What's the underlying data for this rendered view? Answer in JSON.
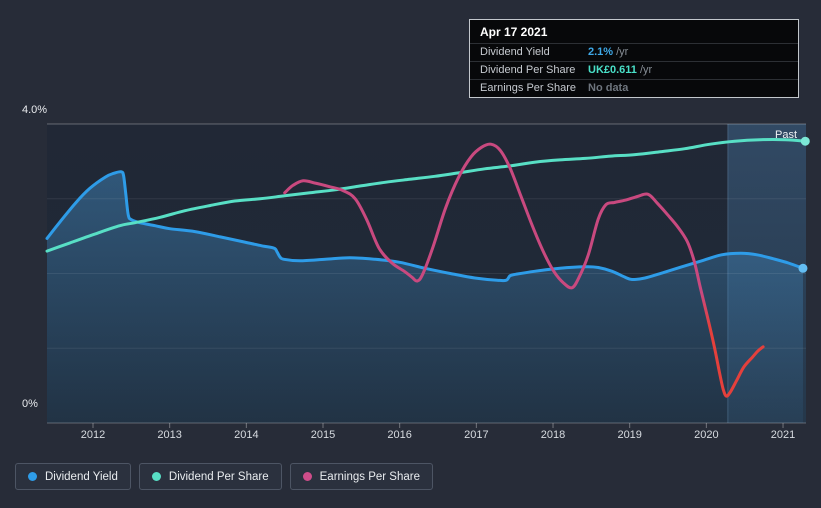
{
  "colors": {
    "page_background": "#272c38",
    "yield_blue": "#2e9ce8",
    "dps_teal": "#58dfc5",
    "eps_pink": "#c9497f",
    "eps_negative_red": "#e4403c",
    "tooltip_yield_value": "#3fa9e8",
    "tooltip_dps_value": "#49e0c8",
    "tooltip_nodata": "#6e757e"
  },
  "tooltip": {
    "date": "Apr 17 2021",
    "rows": [
      {
        "label": "Dividend Yield",
        "value": "2.1%",
        "suffix": "/yr",
        "value_color": "#3fa9e8"
      },
      {
        "label": "Dividend Per Share",
        "value": "UK£0.611",
        "suffix": "/yr",
        "value_color": "#49e0c8"
      },
      {
        "label": "Earnings Per Share",
        "value": "No data",
        "suffix": "",
        "value_color": "#6e757e"
      }
    ]
  },
  "axis": {
    "y_top_label": "4.0%",
    "y_bottom_label": "0%",
    "past_label": "Past"
  },
  "legend": {
    "items": [
      {
        "label": "Dividend Yield",
        "color": "#2e9ce8"
      },
      {
        "label": "Dividend Per Share",
        "color": "#58dfc5"
      },
      {
        "label": "Earnings Per Share",
        "color": "#cf4d8a"
      }
    ]
  },
  "chart_data": {
    "type": "line",
    "title": "Dividend history (yield, dividend per share, earnings per share)",
    "x_axis": {
      "tick_years": [
        2012,
        2013,
        2014,
        2015,
        2016,
        2017,
        2018,
        2019,
        2020,
        2021
      ],
      "range": [
        2011.4,
        2021.3
      ]
    },
    "y_axis": {
      "min": 0,
      "max": 4,
      "unit": "%",
      "top_label": "4.0%",
      "bottom_label": "0%"
    },
    "grid_pct": [
      1,
      2,
      3
    ],
    "past_divider_year": 2020.28,
    "legend_position": "bottom-left",
    "series": [
      {
        "name": "Dividend Yield",
        "color": "#2e9ce8",
        "dot_color": "#63bdf2",
        "area_fill": true,
        "current_value": "2.1% /yr",
        "end_dot": [
          2021.26,
          2.07
        ],
        "points": [
          [
            2011.4,
            2.47
          ],
          [
            2011.57,
            2.69
          ],
          [
            2011.77,
            2.94
          ],
          [
            2011.96,
            3.14
          ],
          [
            2012.16,
            3.29
          ],
          [
            2012.27,
            3.34
          ],
          [
            2012.37,
            3.36
          ],
          [
            2012.4,
            3.3
          ],
          [
            2012.43,
            3.04
          ],
          [
            2012.46,
            2.78
          ],
          [
            2012.5,
            2.72
          ],
          [
            2012.61,
            2.68
          ],
          [
            2012.81,
            2.64
          ],
          [
            2013.0,
            2.6
          ],
          [
            2013.33,
            2.56
          ],
          [
            2013.66,
            2.49
          ],
          [
            2013.98,
            2.42
          ],
          [
            2014.2,
            2.37
          ],
          [
            2014.36,
            2.34
          ],
          [
            2014.4,
            2.29
          ],
          [
            2014.44,
            2.22
          ],
          [
            2014.49,
            2.19
          ],
          [
            2014.7,
            2.17
          ],
          [
            2015.03,
            2.19
          ],
          [
            2015.35,
            2.21
          ],
          [
            2015.68,
            2.19
          ],
          [
            2016.0,
            2.15
          ],
          [
            2016.33,
            2.07
          ],
          [
            2016.66,
            2.0
          ],
          [
            2016.98,
            1.94
          ],
          [
            2017.27,
            1.91
          ],
          [
            2017.39,
            1.91
          ],
          [
            2017.44,
            1.97
          ],
          [
            2017.52,
            1.99
          ],
          [
            2017.76,
            2.03
          ],
          [
            2018.09,
            2.07
          ],
          [
            2018.42,
            2.09
          ],
          [
            2018.59,
            2.08
          ],
          [
            2018.77,
            2.03
          ],
          [
            2018.94,
            1.95
          ],
          [
            2019.03,
            1.92
          ],
          [
            2019.2,
            1.94
          ],
          [
            2019.43,
            2.01
          ],
          [
            2019.68,
            2.09
          ],
          [
            2019.94,
            2.17
          ],
          [
            2020.2,
            2.25
          ],
          [
            2020.45,
            2.27
          ],
          [
            2020.66,
            2.25
          ],
          [
            2020.86,
            2.2
          ],
          [
            2021.07,
            2.14
          ],
          [
            2021.26,
            2.07
          ]
        ]
      },
      {
        "name": "Dividend Per Share",
        "color": "#58dfc5",
        "dot_color": "#7ce8d6",
        "area_fill": false,
        "current_value": "UK£0.611 /yr",
        "end_dot": [
          2021.29,
          3.77
        ],
        "points": [
          [
            2011.4,
            2.3
          ],
          [
            2011.7,
            2.41
          ],
          [
            2012.03,
            2.53
          ],
          [
            2012.35,
            2.64
          ],
          [
            2012.55,
            2.68
          ],
          [
            2012.87,
            2.75
          ],
          [
            2013.2,
            2.84
          ],
          [
            2013.53,
            2.91
          ],
          [
            2013.85,
            2.97
          ],
          [
            2014.18,
            3.0
          ],
          [
            2014.5,
            3.04
          ],
          [
            2014.83,
            3.08
          ],
          [
            2015.16,
            3.12
          ],
          [
            2015.48,
            3.17
          ],
          [
            2015.81,
            3.22
          ],
          [
            2016.13,
            3.26
          ],
          [
            2016.46,
            3.3
          ],
          [
            2016.79,
            3.35
          ],
          [
            2017.11,
            3.4
          ],
          [
            2017.44,
            3.44
          ],
          [
            2017.77,
            3.49
          ],
          [
            2018.09,
            3.52
          ],
          [
            2018.42,
            3.54
          ],
          [
            2018.75,
            3.57
          ],
          [
            2019.07,
            3.59
          ],
          [
            2019.4,
            3.63
          ],
          [
            2019.72,
            3.67
          ],
          [
            2020.05,
            3.73
          ],
          [
            2020.37,
            3.77
          ],
          [
            2020.7,
            3.79
          ],
          [
            2021.03,
            3.79
          ],
          [
            2021.29,
            3.77
          ]
        ]
      },
      {
        "name": "Earnings Per Share",
        "color": "#c9497f",
        "negative_color": "#e4403c",
        "area_fill": false,
        "current_value": "No data",
        "points": [
          [
            2014.5,
            3.08
          ],
          [
            2014.61,
            3.18
          ],
          [
            2014.74,
            3.24
          ],
          [
            2014.9,
            3.21
          ],
          [
            2015.09,
            3.16
          ],
          [
            2015.26,
            3.11
          ],
          [
            2015.42,
            3.0
          ],
          [
            2015.57,
            2.72
          ],
          [
            2015.73,
            2.34
          ],
          [
            2015.9,
            2.14
          ],
          [
            2016.06,
            2.03
          ],
          [
            2016.16,
            1.95
          ],
          [
            2016.23,
            1.9
          ],
          [
            2016.3,
            1.99
          ],
          [
            2016.43,
            2.34
          ],
          [
            2016.6,
            2.88
          ],
          [
            2016.77,
            3.29
          ],
          [
            2016.93,
            3.56
          ],
          [
            2017.07,
            3.69
          ],
          [
            2017.19,
            3.73
          ],
          [
            2017.31,
            3.65
          ],
          [
            2017.44,
            3.41
          ],
          [
            2017.58,
            3.04
          ],
          [
            2017.73,
            2.64
          ],
          [
            2017.87,
            2.3
          ],
          [
            2018.01,
            2.03
          ],
          [
            2018.14,
            1.87
          ],
          [
            2018.25,
            1.81
          ],
          [
            2018.34,
            1.95
          ],
          [
            2018.46,
            2.25
          ],
          [
            2018.59,
            2.73
          ],
          [
            2018.69,
            2.92
          ],
          [
            2018.8,
            2.95
          ],
          [
            2018.94,
            2.98
          ],
          [
            2019.1,
            3.03
          ],
          [
            2019.24,
            3.06
          ],
          [
            2019.36,
            2.94
          ],
          [
            2019.5,
            2.78
          ],
          [
            2019.63,
            2.62
          ],
          [
            2019.75,
            2.43
          ],
          [
            2019.84,
            2.17
          ],
          [
            2019.92,
            1.82
          ],
          [
            2020.01,
            1.44
          ],
          [
            2020.1,
            1.04
          ],
          [
            2020.17,
            0.68
          ],
          [
            2020.22,
            0.45
          ],
          [
            2020.26,
            0.36
          ],
          [
            2020.31,
            0.41
          ],
          [
            2020.39,
            0.56
          ],
          [
            2020.49,
            0.75
          ],
          [
            2020.6,
            0.88
          ],
          [
            2020.67,
            0.96
          ],
          [
            2020.74,
            1.02
          ]
        ]
      }
    ]
  }
}
